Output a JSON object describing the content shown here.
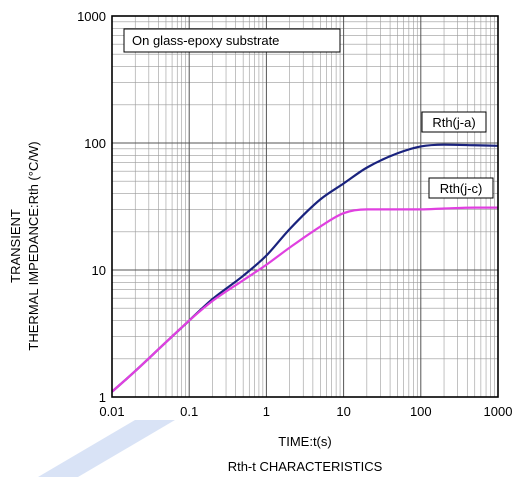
{
  "chart_data": {
    "type": "line",
    "title": "",
    "caption": "Rth-t CHARACTERISTICS",
    "xlabel": "TIME:t(s)",
    "ylabel_lines": [
      "TRANSIENT",
      "THERMAL IMPEDANCE:Rth (°C/W)"
    ],
    "x_scale": "log",
    "y_scale": "log",
    "xlim": [
      0.01,
      1000
    ],
    "ylim": [
      1,
      1000
    ],
    "x_ticks": [
      {
        "value": 0.01,
        "label": "0.01"
      },
      {
        "value": 0.1,
        "label": "0.1"
      },
      {
        "value": 1,
        "label": "1"
      },
      {
        "value": 10,
        "label": "10"
      },
      {
        "value": 100,
        "label": "100"
      },
      {
        "value": 1000,
        "label": "1000"
      }
    ],
    "y_ticks": [
      {
        "value": 1,
        "label": "1"
      },
      {
        "value": 10,
        "label": "10"
      },
      {
        "value": 100,
        "label": "100"
      },
      {
        "value": 1000,
        "label": "1000"
      }
    ],
    "grid": true,
    "legend": "none",
    "annotation": "On glass-epoxy substrate",
    "series": [
      {
        "name": "Rth(j-a)",
        "color": "#1a237e",
        "points": [
          [
            0.01,
            1.1
          ],
          [
            0.02,
            1.6
          ],
          [
            0.05,
            2.7
          ],
          [
            0.1,
            4.0
          ],
          [
            0.2,
            5.9
          ],
          [
            0.5,
            9.0
          ],
          [
            1,
            13
          ],
          [
            2,
            21
          ],
          [
            5,
            36
          ],
          [
            10,
            48
          ],
          [
            20,
            64
          ],
          [
            50,
            83
          ],
          [
            100,
            94
          ],
          [
            200,
            97
          ],
          [
            500,
            96
          ],
          [
            1000,
            95
          ]
        ]
      },
      {
        "name": "Rth(j-c)",
        "color": "#e040e0",
        "points": [
          [
            0.01,
            1.1
          ],
          [
            0.02,
            1.6
          ],
          [
            0.05,
            2.7
          ],
          [
            0.1,
            4.0
          ],
          [
            0.2,
            5.7
          ],
          [
            0.5,
            8.3
          ],
          [
            1,
            11
          ],
          [
            2,
            15
          ],
          [
            5,
            22
          ],
          [
            10,
            28
          ],
          [
            20,
            30
          ],
          [
            50,
            30
          ],
          [
            100,
            30
          ],
          [
            200,
            30.5
          ],
          [
            500,
            31
          ],
          [
            1000,
            31
          ]
        ]
      }
    ]
  },
  "decor": {
    "watermark_color": "#cfdcf4"
  }
}
